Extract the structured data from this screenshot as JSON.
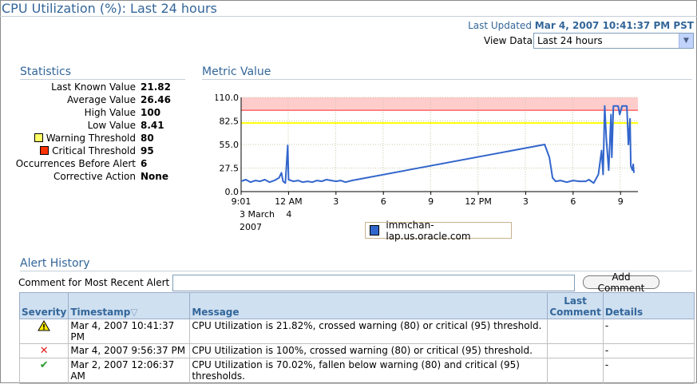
{
  "page": {
    "title": "CPU Utilization (%): Last 24 hours",
    "last_updated_label": "Last Updated",
    "last_updated_value": "Mar 4, 2007 10:41:37 PM PST",
    "view_data_label": "View Data",
    "view_data_selected": "Last 24 hours"
  },
  "statistics": {
    "title": "Statistics",
    "rows": [
      {
        "label": "Last Known Value",
        "value": "21.82"
      },
      {
        "label": "Average Value",
        "value": "26.46"
      },
      {
        "label": "High Value",
        "value": "100"
      },
      {
        "label": "Low Value",
        "value": "8.41"
      },
      {
        "label": "Warning Threshold",
        "value": "80",
        "swatch": "#ffff66"
      },
      {
        "label": "Critical Threshold",
        "value": "95",
        "swatch": "#ff3300"
      },
      {
        "label": "Occurrences Before Alert",
        "value": "6"
      },
      {
        "label": "Corrective Action",
        "value": "None"
      }
    ]
  },
  "metric": {
    "title": "Metric Value"
  },
  "chart_data": {
    "type": "line",
    "title": "",
    "xlabel": "",
    "ylabel": "",
    "ylim": [
      0,
      110
    ],
    "y_ticks": [
      "0.0",
      "27.5",
      "55.0",
      "82.5",
      "110.0"
    ],
    "x_ticks": [
      "9:01",
      "12 AM",
      "3",
      "6",
      "9",
      "12 PM",
      "3",
      "6",
      "9"
    ],
    "x_sublabels": [
      "3 March",
      "4",
      "2007"
    ],
    "warning_threshold": 80,
    "critical_threshold": 95,
    "colors": {
      "line": "#3366cc",
      "warning": "#ffff00",
      "critical_band": "#ffcccc",
      "critical_line": "#ff6666"
    },
    "series": [
      {
        "name": "immchan-lap.us.oracle.com",
        "points": [
          [
            0.0,
            12
          ],
          [
            0.3,
            14
          ],
          [
            0.6,
            11
          ],
          [
            0.9,
            13
          ],
          [
            1.2,
            12
          ],
          [
            1.5,
            14
          ],
          [
            1.8,
            11
          ],
          [
            2.1,
            13
          ],
          [
            2.4,
            16
          ],
          [
            2.55,
            22
          ],
          [
            2.65,
            12
          ],
          [
            2.8,
            10
          ],
          [
            2.95,
            54
          ],
          [
            3.0,
            14
          ],
          [
            3.3,
            12
          ],
          [
            3.6,
            13
          ],
          [
            3.9,
            11
          ],
          [
            4.2,
            12
          ],
          [
            4.5,
            11
          ],
          [
            4.8,
            13
          ],
          [
            5.1,
            12
          ],
          [
            5.4,
            14
          ],
          [
            5.7,
            13
          ],
          [
            6.0,
            12
          ],
          [
            6.3,
            13
          ],
          [
            6.6,
            11
          ],
          [
            7.0,
            13
          ],
          [
            19.2,
            55
          ],
          [
            19.5,
            40
          ],
          [
            19.7,
            16
          ],
          [
            19.9,
            12
          ],
          [
            20.2,
            13
          ],
          [
            20.6,
            11
          ],
          [
            21.0,
            13
          ],
          [
            21.4,
            12
          ],
          [
            21.8,
            12
          ],
          [
            22.0,
            14
          ],
          [
            22.3,
            10
          ],
          [
            22.6,
            20
          ],
          [
            22.8,
            48
          ],
          [
            22.9,
            20
          ],
          [
            23.0,
            100
          ],
          [
            23.1,
            62
          ],
          [
            23.25,
            25
          ],
          [
            23.4,
            90
          ],
          [
            23.45,
            40
          ],
          [
            23.55,
            100
          ],
          [
            23.7,
            100
          ],
          [
            23.85,
            100
          ],
          [
            23.95,
            90
          ],
          [
            24.1,
            100
          ],
          [
            24.25,
            100
          ],
          [
            24.4,
            100
          ],
          [
            24.5,
            55
          ],
          [
            24.6,
            85
          ],
          [
            24.65,
            30
          ],
          [
            24.75,
            25
          ],
          [
            24.8,
            32
          ],
          [
            24.85,
            21.82
          ]
        ]
      }
    ]
  },
  "alert_history": {
    "title": "Alert History",
    "comment_label": "Comment for Most Recent Alert",
    "comment_value": "",
    "add_comment_label": "Add Comment",
    "columns": {
      "severity": "Severity",
      "timestamp": "Timestamp",
      "sort_glyph": "▽",
      "message": "Message",
      "last_comment_1": "Last",
      "last_comment_2": "Comment",
      "details": "Details"
    },
    "rows": [
      {
        "severity": "warning",
        "timestamp": "Mar 4, 2007 10:41:37 PM",
        "message": "CPU Utilization is 21.82%, crossed warning (80) or critical (95) threshold.",
        "last_comment": "",
        "details": "-"
      },
      {
        "severity": "critical",
        "timestamp": "Mar 4, 2007 9:56:37 PM",
        "message": "CPU Utilization is 100%, crossed warning (80) or critical (95) threshold.",
        "last_comment": "",
        "details": "-"
      },
      {
        "severity": "clear",
        "timestamp": "Mar 2, 2007 12:06:37 AM",
        "message": "CPU Utilization is 70.02%, fallen below warning (80) and critical (95) thresholds.",
        "last_comment": "",
        "details": "-"
      }
    ]
  }
}
